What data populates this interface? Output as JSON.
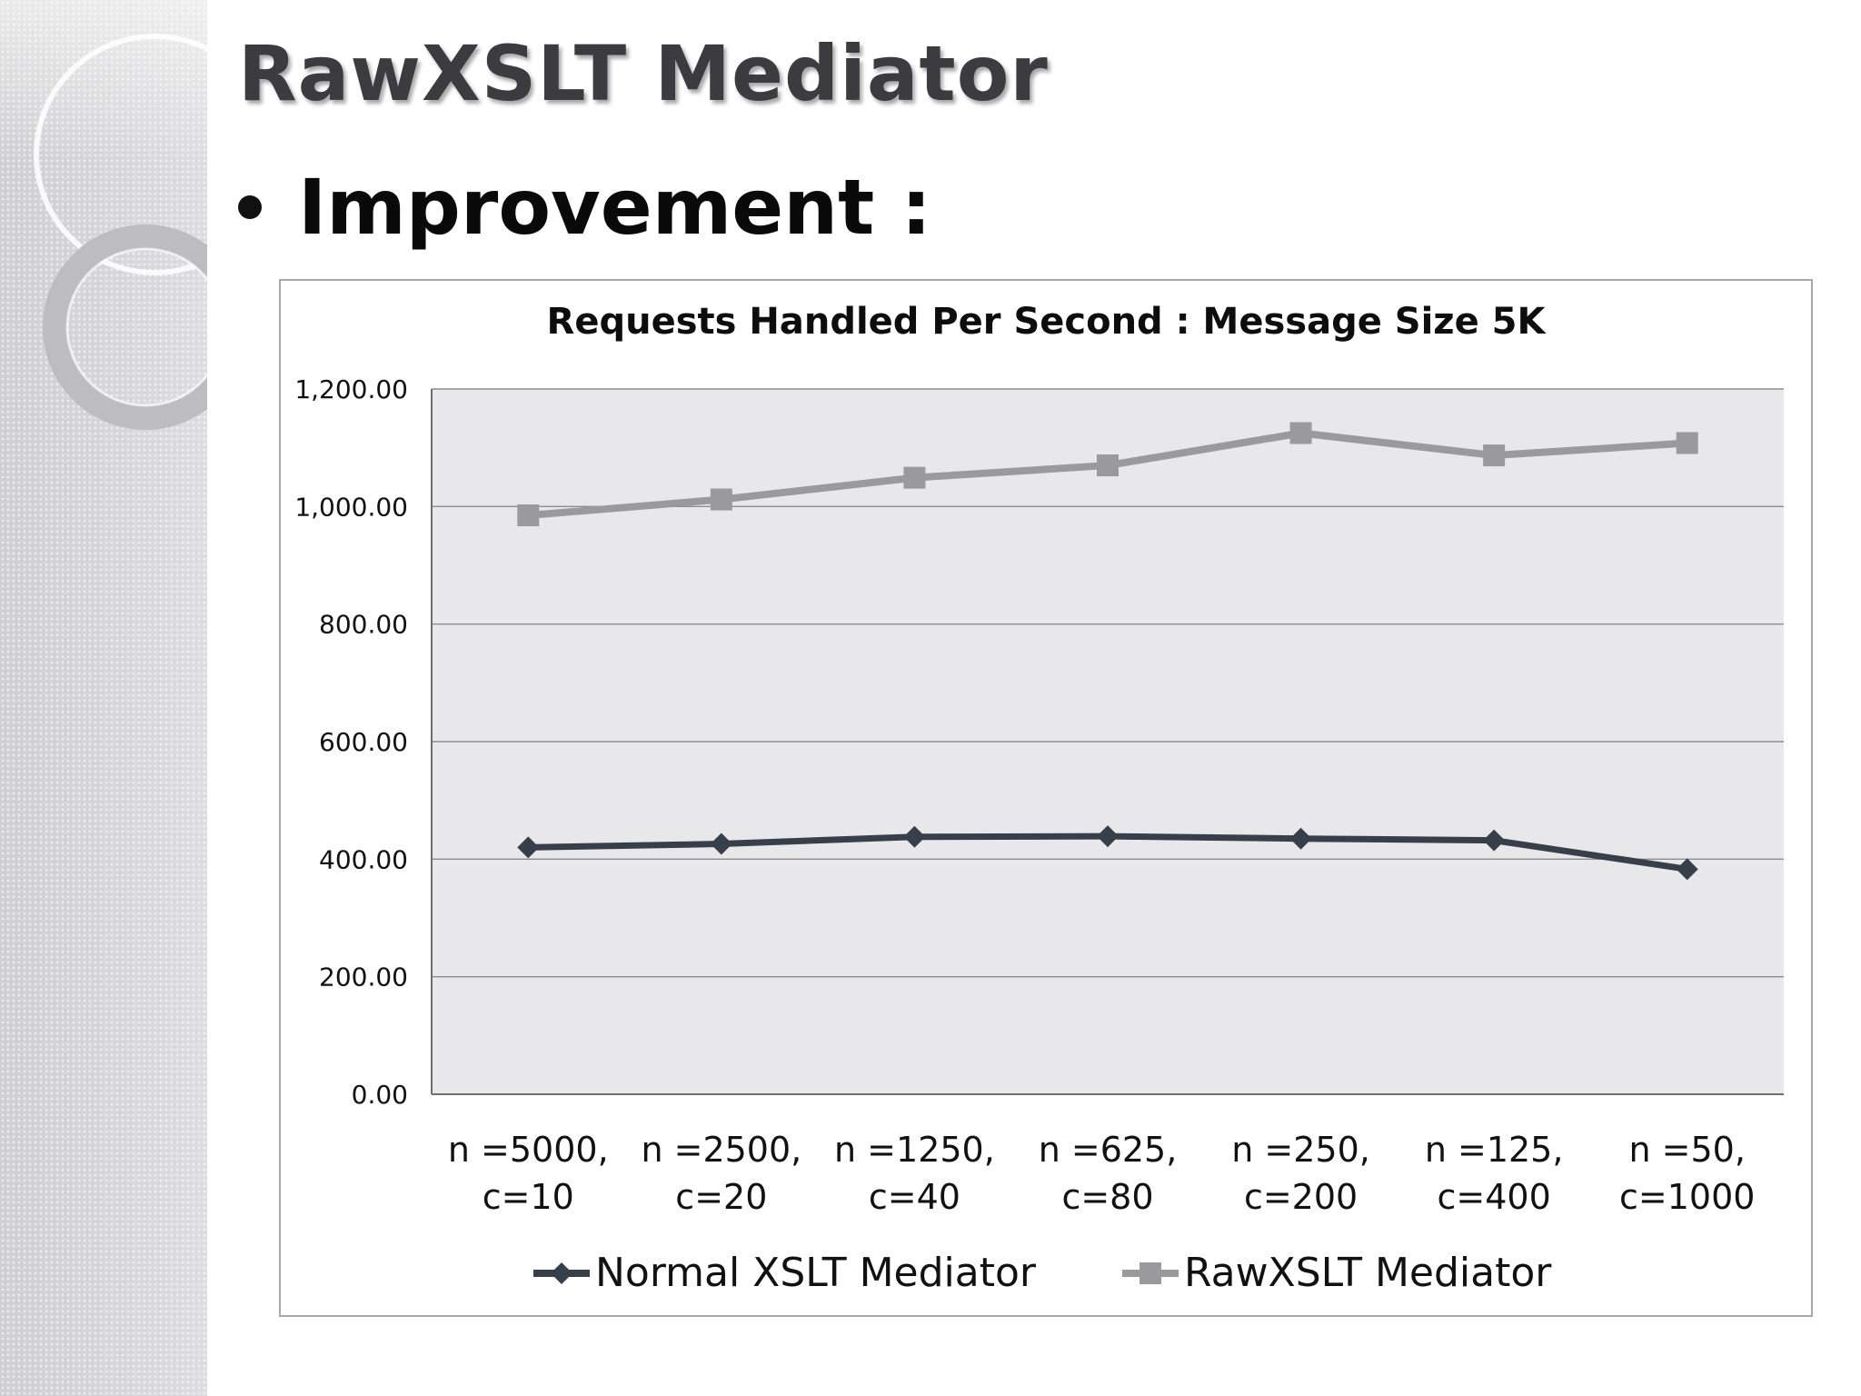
{
  "slide": {
    "title": "RawXSLT Mediator",
    "bullet": "Improvement :"
  },
  "colors": {
    "normal_series": "#37404a",
    "raw_series": "#9a9a9c",
    "plot_background": "#e8e8ea",
    "gridline": "#8c8c8c"
  },
  "chart_data": {
    "type": "line",
    "title": "Requests Handled Per Second : Message Size 5K",
    "categories": [
      [
        "n =5000,",
        "c=10"
      ],
      [
        "n =2500,",
        "c=20"
      ],
      [
        "n =1250,",
        "c=40"
      ],
      [
        "n =625,",
        "c=80"
      ],
      [
        "n =250,",
        "c=200"
      ],
      [
        "n =125,",
        "c=400"
      ],
      [
        "n =50,",
        "c=1000"
      ]
    ],
    "series": [
      {
        "name": "Normal XSLT Mediator",
        "marker": "diamond",
        "values": [
          420,
          426,
          438,
          439,
          435,
          432,
          383
        ]
      },
      {
        "name": "RawXSLT Mediator",
        "marker": "square",
        "values": [
          985,
          1012,
          1049,
          1070,
          1125,
          1087,
          1108
        ]
      }
    ],
    "ylim": [
      0,
      1200
    ],
    "ytick_step": 200,
    "ytick_labels": [
      "0.00",
      "200.00",
      "400.00",
      "600.00",
      "800.00",
      "1,000.00",
      "1,200.00"
    ],
    "grid": true,
    "legend_position": "bottom",
    "xlabel": "",
    "ylabel": ""
  }
}
